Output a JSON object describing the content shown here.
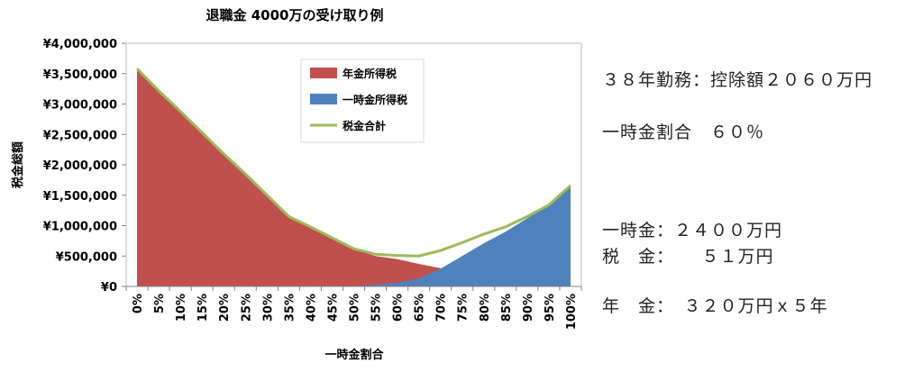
{
  "chart_data": {
    "type": "area",
    "title": "退職金 4000万の受け取り例",
    "xlabel": "一時金割合",
    "ylabel": "税金総額",
    "categories": [
      "0%",
      "5%",
      "10%",
      "15%",
      "20%",
      "25%",
      "30%",
      "35%",
      "40%",
      "45%",
      "50%",
      "55%",
      "60%",
      "65%",
      "70%",
      "75%",
      "80%",
      "85%",
      "90%",
      "95%",
      "100%"
    ],
    "ylim": [
      0,
      4000000
    ],
    "yticks": [
      {
        "value": 0,
        "label": "¥0"
      },
      {
        "value": 500000,
        "label": "¥500,000"
      },
      {
        "value": 1000000,
        "label": "¥1,000,000"
      },
      {
        "value": 1500000,
        "label": "¥1,500,000"
      },
      {
        "value": 2000000,
        "label": "¥2,000,000"
      },
      {
        "value": 2500000,
        "label": "¥2,500,000"
      },
      {
        "value": 3000000,
        "label": "¥3,000,000"
      },
      {
        "value": 3500000,
        "label": "¥3,500,000"
      },
      {
        "value": 4000000,
        "label": "¥4,000,000"
      }
    ],
    "grid": false,
    "legend_position": "top-center",
    "series": [
      {
        "name": "年金所得税",
        "kind": "area",
        "color": "#c0504d",
        "values": [
          3580000,
          3220000,
          2880000,
          2530000,
          2180000,
          1850000,
          1500000,
          1150000,
          980000,
          800000,
          620000,
          500000,
          450000,
          370000,
          300000,
          220000,
          150000,
          80000,
          30000,
          0,
          0
        ]
      },
      {
        "name": "一時金所得税",
        "kind": "area",
        "color": "#4f81bd",
        "values": [
          0,
          0,
          0,
          0,
          0,
          0,
          0,
          0,
          0,
          0,
          0,
          30000,
          60000,
          130000,
          290000,
          500000,
          710000,
          900000,
          1120000,
          1340000,
          1660000
        ]
      },
      {
        "name": "税金合計",
        "kind": "line",
        "color": "#9bbb59",
        "values": [
          3580000,
          3220000,
          2880000,
          2530000,
          2180000,
          1850000,
          1500000,
          1150000,
          980000,
          800000,
          620000,
          530000,
          510000,
          500000,
          590000,
          720000,
          860000,
          980000,
          1150000,
          1340000,
          1660000
        ]
      }
    ]
  },
  "side": {
    "line1": "３８年勤務：控除額２０６０万円",
    "line2": "一時金割合　６０％",
    "line3": "一時金：２４００万円",
    "line4": "年　金：　３２０万円ｘ５年",
    "line5": "税　金：　　５１万円"
  }
}
